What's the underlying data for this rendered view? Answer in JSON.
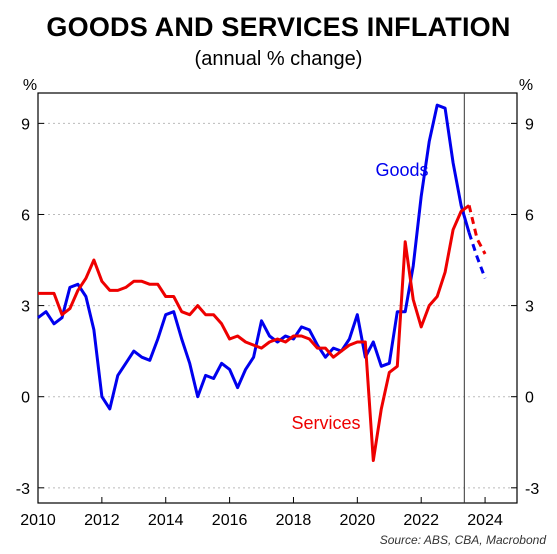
{
  "chart_data": {
    "type": "line",
    "title": "GOODS AND SERVICES INFLATION",
    "subtitle": "(annual % change)",
    "y_unit_left": "%",
    "y_unit_right": "%",
    "ylim": [
      -3.5,
      10
    ],
    "yticks": [
      -3,
      0,
      3,
      6,
      9
    ],
    "ytick_labels": [
      "-3",
      "0",
      "3",
      "6",
      "9"
    ],
    "xlim": [
      2010,
      2025
    ],
    "xticks": [
      2010,
      2012,
      2014,
      2016,
      2018,
      2020,
      2022,
      2024
    ],
    "xtick_labels": [
      "2010",
      "2012",
      "2014",
      "2016",
      "2018",
      "2020",
      "2022",
      "2024"
    ],
    "vline_x": 2023.35,
    "grid": "horizontal dotted",
    "source": "Source: ABS, CBA, Macrobond",
    "series": [
      {
        "name": "Goods",
        "color": "#0000ee",
        "x": [
          2010.0,
          2010.25,
          2010.5,
          2010.75,
          2011.0,
          2011.25,
          2011.5,
          2011.75,
          2012.0,
          2012.25,
          2012.5,
          2012.75,
          2013.0,
          2013.25,
          2013.5,
          2013.75,
          2014.0,
          2014.25,
          2014.5,
          2014.75,
          2015.0,
          2015.25,
          2015.5,
          2015.75,
          2016.0,
          2016.25,
          2016.5,
          2016.75,
          2017.0,
          2017.25,
          2017.5,
          2017.75,
          2018.0,
          2018.25,
          2018.5,
          2018.75,
          2019.0,
          2019.25,
          2019.5,
          2019.75,
          2020.0,
          2020.25,
          2020.5,
          2020.75,
          2021.0,
          2021.25,
          2021.5,
          2021.75,
          2022.0,
          2022.25,
          2022.5,
          2022.75,
          2023.0,
          2023.25,
          2023.5
        ],
        "values": [
          2.6,
          2.8,
          2.4,
          2.6,
          3.6,
          3.7,
          3.3,
          2.2,
          0.0,
          -0.4,
          0.7,
          1.1,
          1.5,
          1.3,
          1.2,
          1.9,
          2.7,
          2.8,
          1.9,
          1.1,
          0.0,
          0.7,
          0.6,
          1.1,
          0.9,
          0.3,
          0.9,
          1.3,
          2.5,
          2.0,
          1.8,
          2.0,
          1.9,
          2.3,
          2.2,
          1.7,
          1.3,
          1.6,
          1.5,
          1.9,
          2.7,
          1.3,
          1.8,
          1.0,
          1.1,
          2.8,
          2.8,
          4.3,
          6.6,
          8.4,
          9.6,
          9.5,
          7.7,
          6.3,
          5.4
        ],
        "forecast_x": [
          2023.5,
          2023.75,
          2024.0
        ],
        "forecast_values": [
          5.4,
          4.6,
          3.9
        ]
      },
      {
        "name": "Services",
        "color": "#ee0000",
        "x": [
          2010.0,
          2010.25,
          2010.5,
          2010.75,
          2011.0,
          2011.25,
          2011.5,
          2011.75,
          2012.0,
          2012.25,
          2012.5,
          2012.75,
          2013.0,
          2013.25,
          2013.5,
          2013.75,
          2014.0,
          2014.25,
          2014.5,
          2014.75,
          2015.0,
          2015.25,
          2015.5,
          2015.75,
          2016.0,
          2016.25,
          2016.5,
          2016.75,
          2017.0,
          2017.25,
          2017.5,
          2017.75,
          2018.0,
          2018.25,
          2018.5,
          2018.75,
          2019.0,
          2019.25,
          2019.5,
          2019.75,
          2020.0,
          2020.25,
          2020.5,
          2020.75,
          2021.0,
          2021.25,
          2021.5,
          2021.75,
          2022.0,
          2022.25,
          2022.5,
          2022.75,
          2023.0,
          2023.25,
          2023.5
        ],
        "values": [
          3.4,
          3.4,
          3.4,
          2.7,
          2.9,
          3.5,
          3.9,
          4.5,
          3.8,
          3.5,
          3.5,
          3.6,
          3.8,
          3.8,
          3.7,
          3.7,
          3.3,
          3.3,
          2.8,
          2.7,
          3.0,
          2.7,
          2.7,
          2.4,
          1.9,
          2.0,
          1.8,
          1.7,
          1.6,
          1.8,
          1.9,
          1.8,
          2.0,
          2.0,
          1.9,
          1.6,
          1.6,
          1.3,
          1.5,
          1.7,
          1.8,
          1.8,
          -2.1,
          -0.4,
          0.8,
          1.0,
          5.1,
          3.2,
          2.3,
          3.0,
          3.3,
          4.1,
          5.5,
          6.1,
          6.3
        ],
        "forecast_x": [
          2023.5,
          2023.75,
          2024.0
        ],
        "forecast_values": [
          6.3,
          5.2,
          4.7
        ]
      }
    ],
    "series_labels": {
      "goods": "Goods",
      "services": "Services"
    }
  }
}
